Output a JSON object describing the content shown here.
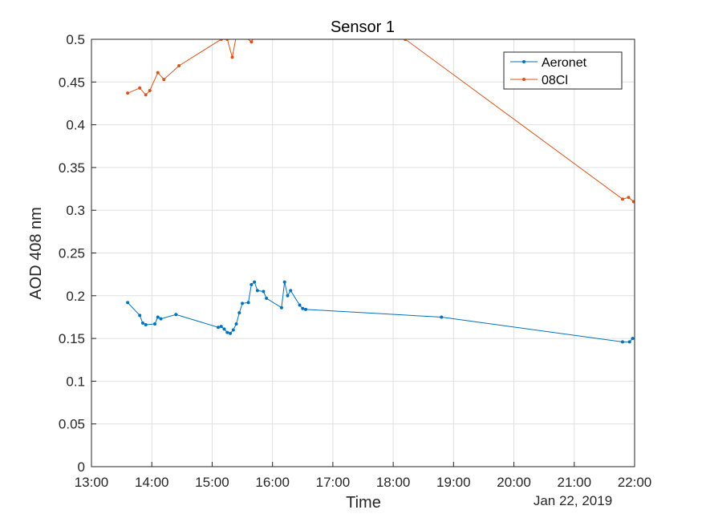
{
  "chart_data": {
    "type": "line",
    "title": "Sensor 1",
    "xlabel": "Time",
    "ylabel": "AOD 408 nm",
    "date_label": "Jan 22, 2019",
    "x_ticks": [
      "13:00",
      "14:00",
      "15:00",
      "16:00",
      "17:00",
      "18:00",
      "19:00",
      "20:00",
      "21:00",
      "22:00"
    ],
    "y_ticks": [
      "0",
      "0.05",
      "0.1",
      "0.15",
      "0.2",
      "0.25",
      "0.3",
      "0.35",
      "0.4",
      "0.45",
      "0.5"
    ],
    "xlim": [
      "13:00",
      "22:00"
    ],
    "ylim": [
      0,
      0.5
    ],
    "grid": true,
    "legend_position": "top-right",
    "series": [
      {
        "name": "Aeronet",
        "color": "#0072BD",
        "points": [
          [
            "13:36",
            0.192
          ],
          [
            "13:48",
            0.177
          ],
          [
            "13:51",
            0.168
          ],
          [
            "13:54",
            0.166
          ],
          [
            "14:03",
            0.167
          ],
          [
            "14:06",
            0.175
          ],
          [
            "14:09",
            0.173
          ],
          [
            "14:24",
            0.178
          ],
          [
            "15:06",
            0.163
          ],
          [
            "15:09",
            0.164
          ],
          [
            "15:12",
            0.161
          ],
          [
            "15:15",
            0.157
          ],
          [
            "15:18",
            0.156
          ],
          [
            "15:21",
            0.16
          ],
          [
            "15:24",
            0.167
          ],
          [
            "15:27",
            0.18
          ],
          [
            "15:30",
            0.191
          ],
          [
            "15:36",
            0.192
          ],
          [
            "15:39",
            0.213
          ],
          [
            "15:42",
            0.216
          ],
          [
            "15:45",
            0.206
          ],
          [
            "15:51",
            0.205
          ],
          [
            "15:54",
            0.197
          ],
          [
            "16:09",
            0.186
          ],
          [
            "16:12",
            0.216
          ],
          [
            "16:15",
            0.2
          ],
          [
            "16:18",
            0.206
          ],
          [
            "16:27",
            0.189
          ],
          [
            "16:30",
            0.185
          ],
          [
            "16:33",
            0.184
          ],
          [
            "18:48",
            0.175
          ],
          [
            "21:48",
            0.146
          ],
          [
            "21:55",
            0.146
          ],
          [
            "21:58",
            0.15
          ]
        ]
      },
      {
        "name": "08Cl",
        "color": "#D95319",
        "points": [
          [
            "13:36",
            0.437
          ],
          [
            "13:48",
            0.443
          ],
          [
            "13:54",
            0.435
          ],
          [
            "13:58",
            0.44
          ],
          [
            "14:06",
            0.461
          ],
          [
            "14:12",
            0.453
          ],
          [
            "14:27",
            0.469
          ],
          [
            "15:09",
            0.5
          ],
          [
            "15:15",
            0.5
          ],
          [
            "15:20",
            0.479
          ],
          [
            "15:25",
            0.51
          ],
          [
            "15:39",
            0.497
          ],
          [
            "15:42",
            0.503
          ],
          [
            "18:12",
            0.5
          ],
          [
            "21:48",
            0.313
          ],
          [
            "21:54",
            0.315
          ],
          [
            "21:59",
            0.31
          ]
        ]
      }
    ]
  }
}
